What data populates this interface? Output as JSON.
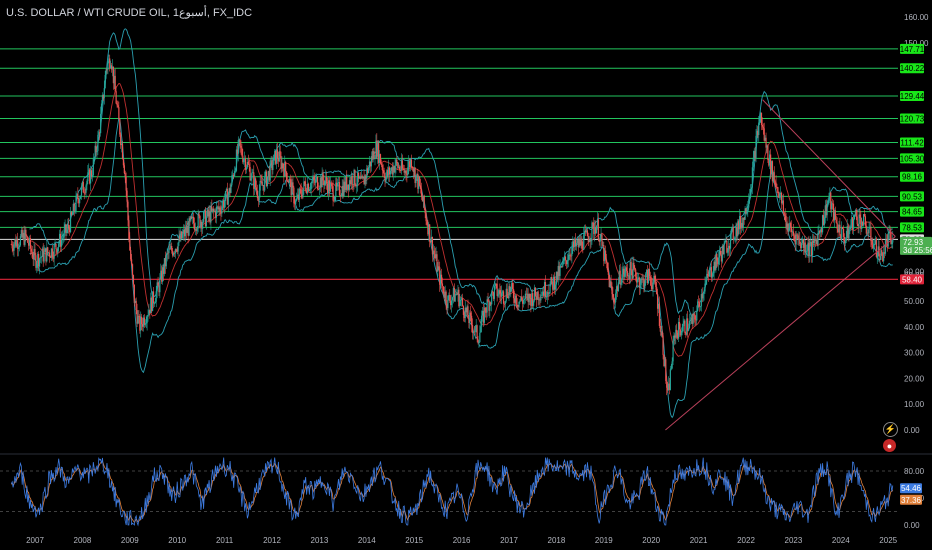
{
  "title": "U.S. DOLLAR / WTI CRUDE OIL, 1أسبوع, FX_IDC",
  "colors": {
    "background": "#000000",
    "level_line": "#22c55e",
    "level_tag": "#19e619",
    "support_line": "#e0243a",
    "trend_line": "#b8405a",
    "price_tag": "#4caf50",
    "bollinger": "#2a9fb0",
    "ma": "#c03030",
    "candle_up": "#26a69a",
    "candle_down": "#ef5350",
    "stoch_k": "#3d7be0",
    "stoch_d": "#e0803a"
  },
  "price_axis": {
    "ticks": [
      "160.00",
      "150.00",
      "60.00",
      "50.00",
      "40.00",
      "30.00",
      "20.00",
      "10.00",
      "0.00"
    ],
    "tick_values": [
      160,
      150,
      60,
      50,
      40,
      30,
      20,
      10,
      0
    ]
  },
  "levels": [
    {
      "label": "147.71",
      "value": 147.71
    },
    {
      "label": "140.22",
      "value": 140.22
    },
    {
      "label": "129.44",
      "value": 129.44
    },
    {
      "label": "120.73",
      "value": 120.73
    },
    {
      "label": "111.42",
      "value": 111.42
    },
    {
      "label": "105.30",
      "value": 105.3
    },
    {
      "label": "98.16",
      "value": 98.16
    },
    {
      "label": "90.53",
      "value": 90.53
    },
    {
      "label": "84.65",
      "value": 84.65
    },
    {
      "label": "78.53",
      "value": 78.53
    }
  ],
  "white_level": {
    "label": "73.88",
    "value": 73.88
  },
  "support_level": {
    "label": "58.40",
    "value": 58.4
  },
  "current_price": {
    "label": "72.93",
    "countdown": "3d 25:56",
    "value": 72.93
  },
  "faint_tag": {
    "label": "60.00"
  },
  "stoch_axis": {
    "ticks": [
      "80.00",
      "40.00",
      "0.00"
    ],
    "tick_values": [
      80,
      40,
      0
    ]
  },
  "stoch_tags": [
    {
      "label": "54.46",
      "value": 54.46,
      "color": "#3d7be0"
    },
    {
      "label": "37.36",
      "value": 37.36,
      "color": "#e0803a"
    }
  ],
  "time_axis": [
    {
      "label": "2007",
      "year": 2007
    },
    {
      "label": "2008",
      "year": 2008
    },
    {
      "label": "2009",
      "year": 2009
    },
    {
      "label": "2010",
      "year": 2010
    },
    {
      "label": "2011",
      "year": 2011
    },
    {
      "label": "2012",
      "year": 2012
    },
    {
      "label": "2013",
      "year": 2013
    },
    {
      "label": "2014",
      "year": 2014
    },
    {
      "label": "2015",
      "year": 2015
    },
    {
      "label": "2016",
      "year": 2016
    },
    {
      "label": "2017",
      "year": 2017
    },
    {
      "label": "2018",
      "year": 2018
    },
    {
      "label": "2019",
      "year": 2019
    },
    {
      "label": "2020",
      "year": 2020
    },
    {
      "label": "2021",
      "year": 2021
    },
    {
      "label": "2022",
      "year": 2022
    },
    {
      "label": "2023",
      "year": 2023
    },
    {
      "label": "2024",
      "year": 2024
    },
    {
      "label": "2025",
      "year": 2025
    }
  ],
  "price_path": [
    [
      2006.5,
      72
    ],
    [
      2006.8,
      75
    ],
    [
      2007.0,
      66
    ],
    [
      2007.4,
      70
    ],
    [
      2007.7,
      78
    ],
    [
      2007.9,
      90
    ],
    [
      2008.2,
      100
    ],
    [
      2008.35,
      115
    ],
    [
      2008.5,
      140
    ],
    [
      2008.6,
      145
    ],
    [
      2008.75,
      122
    ],
    [
      2008.9,
      100
    ],
    [
      2009.0,
      70
    ],
    [
      2009.1,
      50
    ],
    [
      2009.2,
      40
    ],
    [
      2009.35,
      45
    ],
    [
      2009.6,
      55
    ],
    [
      2009.8,
      68
    ],
    [
      2010.0,
      72
    ],
    [
      2010.3,
      80
    ],
    [
      2010.6,
      82
    ],
    [
      2010.9,
      86
    ],
    [
      2011.1,
      92
    ],
    [
      2011.3,
      110
    ],
    [
      2011.5,
      102
    ],
    [
      2011.7,
      92
    ],
    [
      2011.9,
      98
    ],
    [
      2012.1,
      107
    ],
    [
      2012.3,
      100
    ],
    [
      2012.5,
      88
    ],
    [
      2012.7,
      95
    ],
    [
      2012.9,
      96
    ],
    [
      2013.1,
      97
    ],
    [
      2013.3,
      92
    ],
    [
      2013.5,
      94
    ],
    [
      2013.7,
      98
    ],
    [
      2013.9,
      95
    ],
    [
      2014.0,
      100
    ],
    [
      2014.2,
      110
    ],
    [
      2014.4,
      98
    ],
    [
      2014.6,
      103
    ],
    [
      2014.8,
      100
    ],
    [
      2014.95,
      105
    ],
    [
      2015.0,
      100
    ],
    [
      2015.1,
      95
    ],
    [
      2015.4,
      70
    ],
    [
      2015.55,
      58
    ],
    [
      2015.7,
      50
    ],
    [
      2015.9,
      53
    ],
    [
      2016.1,
      45
    ],
    [
      2016.35,
      36
    ],
    [
      2016.5,
      47
    ],
    [
      2016.7,
      54
    ],
    [
      2016.9,
      52
    ],
    [
      2017.0,
      55
    ],
    [
      2017.2,
      50
    ],
    [
      2017.45,
      51
    ],
    [
      2017.7,
      54
    ],
    [
      2017.9,
      56
    ],
    [
      2018.1,
      62
    ],
    [
      2018.3,
      70
    ],
    [
      2018.5,
      72
    ],
    [
      2018.7,
      76
    ],
    [
      2018.85,
      80
    ],
    [
      2019.0,
      68
    ],
    [
      2019.2,
      50
    ],
    [
      2019.35,
      60
    ],
    [
      2019.6,
      62
    ],
    [
      2019.8,
      57
    ],
    [
      2019.95,
      60
    ],
    [
      2020.1,
      55
    ],
    [
      2020.25,
      32
    ],
    [
      2020.3,
      22
    ],
    [
      2020.35,
      12
    ],
    [
      2020.5,
      38
    ],
    [
      2020.7,
      40
    ],
    [
      2020.9,
      42
    ],
    [
      2021.1,
      55
    ],
    [
      2021.3,
      63
    ],
    [
      2021.6,
      72
    ],
    [
      2021.8,
      78
    ],
    [
      2021.95,
      82
    ],
    [
      2022.1,
      95
    ],
    [
      2022.2,
      110
    ],
    [
      2022.3,
      122
    ],
    [
      2022.4,
      112
    ],
    [
      2022.55,
      100
    ],
    [
      2022.7,
      92
    ],
    [
      2022.85,
      80
    ],
    [
      2023.0,
      76
    ],
    [
      2023.2,
      72
    ],
    [
      2023.4,
      70
    ],
    [
      2023.6,
      80
    ],
    [
      2023.75,
      90
    ],
    [
      2023.9,
      80
    ],
    [
      2024.1,
      74
    ],
    [
      2024.3,
      83
    ],
    [
      2024.5,
      80
    ],
    [
      2024.7,
      72
    ],
    [
      2024.85,
      67
    ],
    [
      2025.0,
      74
    ],
    [
      2025.1,
      72.93
    ]
  ],
  "stoch_path": [
    [
      2006.5,
      60
    ],
    [
      2006.7,
      80
    ],
    [
      2006.9,
      30
    ],
    [
      2007.1,
      20
    ],
    [
      2007.3,
      70
    ],
    [
      2007.5,
      85
    ],
    [
      2007.7,
      60
    ],
    [
      2007.9,
      85
    ],
    [
      2008.1,
      70
    ],
    [
      2008.3,
      90
    ],
    [
      2008.5,
      88
    ],
    [
      2008.7,
      40
    ],
    [
      2008.9,
      10
    ],
    [
      2009.1,
      5
    ],
    [
      2009.3,
      20
    ],
    [
      2009.5,
      70
    ],
    [
      2009.7,
      80
    ],
    [
      2009.9,
      40
    ],
    [
      2010.1,
      60
    ],
    [
      2010.3,
      85
    ],
    [
      2010.5,
      30
    ],
    [
      2010.7,
      60
    ],
    [
      2010.9,
      90
    ],
    [
      2011.1,
      85
    ],
    [
      2011.3,
      50
    ],
    [
      2011.5,
      20
    ],
    [
      2011.7,
      60
    ],
    [
      2011.9,
      80
    ],
    [
      2012.1,
      90
    ],
    [
      2012.3,
      40
    ],
    [
      2012.5,
      10
    ],
    [
      2012.7,
      60
    ],
    [
      2012.9,
      50
    ],
    [
      2013.1,
      70
    ],
    [
      2013.3,
      30
    ],
    [
      2013.5,
      80
    ],
    [
      2013.7,
      70
    ],
    [
      2013.9,
      40
    ],
    [
      2014.1,
      70
    ],
    [
      2014.3,
      85
    ],
    [
      2014.5,
      50
    ],
    [
      2014.7,
      20
    ],
    [
      2014.9,
      10
    ],
    [
      2015.1,
      30
    ],
    [
      2015.3,
      80
    ],
    [
      2015.5,
      40
    ],
    [
      2015.7,
      20
    ],
    [
      2015.9,
      50
    ],
    [
      2016.1,
      15
    ],
    [
      2016.3,
      80
    ],
    [
      2016.5,
      90
    ],
    [
      2016.7,
      50
    ],
    [
      2016.9,
      80
    ],
    [
      2017.1,
      40
    ],
    [
      2017.3,
      20
    ],
    [
      2017.5,
      50
    ],
    [
      2017.7,
      85
    ],
    [
      2017.9,
      90
    ],
    [
      2018.1,
      80
    ],
    [
      2018.3,
      85
    ],
    [
      2018.5,
      70
    ],
    [
      2018.7,
      85
    ],
    [
      2018.9,
      10
    ],
    [
      2019.1,
      60
    ],
    [
      2019.3,
      85
    ],
    [
      2019.5,
      30
    ],
    [
      2019.7,
      40
    ],
    [
      2019.9,
      80
    ],
    [
      2020.1,
      30
    ],
    [
      2020.3,
      5
    ],
    [
      2020.5,
      80
    ],
    [
      2020.7,
      70
    ],
    [
      2020.9,
      85
    ],
    [
      2021.1,
      90
    ],
    [
      2021.3,
      60
    ],
    [
      2021.5,
      80
    ],
    [
      2021.7,
      40
    ],
    [
      2021.9,
      85
    ],
    [
      2022.1,
      90
    ],
    [
      2022.3,
      70
    ],
    [
      2022.5,
      30
    ],
    [
      2022.7,
      20
    ],
    [
      2022.9,
      10
    ],
    [
      2023.1,
      30
    ],
    [
      2023.3,
      15
    ],
    [
      2023.5,
      70
    ],
    [
      2023.7,
      90
    ],
    [
      2023.9,
      10
    ],
    [
      2024.1,
      60
    ],
    [
      2024.3,
      85
    ],
    [
      2024.5,
      40
    ],
    [
      2024.7,
      10
    ],
    [
      2024.9,
      30
    ],
    [
      2025.1,
      54
    ]
  ]
}
